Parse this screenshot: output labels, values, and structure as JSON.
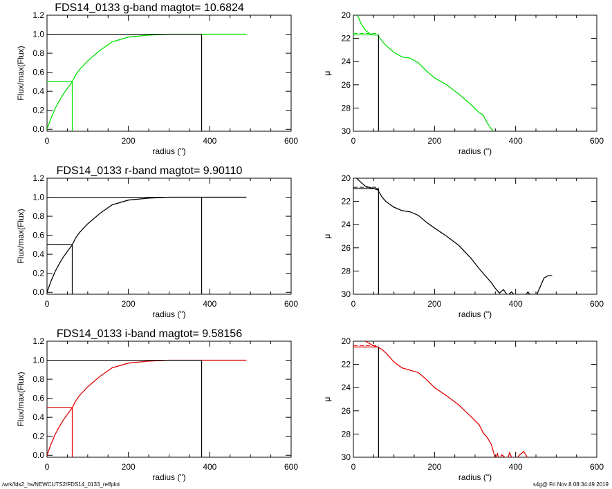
{
  "colors": {
    "g": "#00e000",
    "r": "#000000",
    "i": "#e00000",
    "frame": "#000000"
  },
  "footer": {
    "left": "/wrk/fds2_hs/NEWCUTS2/FDS14_0133_reffplot",
    "right": "s4g@  Fri Nov  8 08:34:49 2019"
  },
  "panels": [
    {
      "band": "g",
      "title": "FDS14_0133 g-band  magtot=      10.6824"
    },
    {
      "band": "r",
      "title": "FDS14_0133 r-band  magtot=      9.90110"
    },
    {
      "band": "i",
      "title": "FDS14_0133 i-band  magtot=      9.58156"
    }
  ],
  "chart_data": [
    {
      "type": "line",
      "band": "g",
      "title": "FDS14_0133 g-band  magtot=      10.6824",
      "xlabel": "radius (\")",
      "ylabel": "Flux/max(Flux)",
      "xlim": [
        0,
        600
      ],
      "ylim": [
        -0.02,
        1.2
      ],
      "xticks": [
        "0",
        "200",
        "400",
        "600"
      ],
      "yticks": [
        "0.0",
        "0.2",
        "0.4",
        "0.6",
        "0.8",
        "1.0",
        "1.2"
      ],
      "series": [
        {
          "x": [
            0,
            5,
            10,
            20,
            30,
            40,
            50,
            62,
            70,
            80,
            100,
            130,
            160,
            200,
            250,
            300,
            350,
            380,
            420,
            490
          ],
          "y": [
            0,
            0.06,
            0.12,
            0.22,
            0.3,
            0.37,
            0.43,
            0.5,
            0.57,
            0.63,
            0.72,
            0.83,
            0.92,
            0.97,
            0.99,
            1.0,
            1.0,
            1.0,
            1.0,
            1.0
          ]
        }
      ],
      "r_half": 62,
      "half_level": 0.5,
      "r_max": 380,
      "max_level": 1.0
    },
    {
      "type": "line",
      "band": "g",
      "xlabel": "radius (\")",
      "ylabel": "μ",
      "xlim": [
        0,
        600
      ],
      "ylim": [
        30,
        20
      ],
      "y_inverted": true,
      "xticks": [
        "0",
        "200",
        "400",
        "600"
      ],
      "yticks": [
        "20",
        "22",
        "24",
        "26",
        "28",
        "30"
      ],
      "series": [
        {
          "x": [
            10,
            20,
            30,
            40,
            50,
            60,
            70,
            80,
            100,
            120,
            140,
            160,
            180,
            200,
            230,
            260,
            290,
            310,
            320,
            330,
            340,
            350
          ],
          "y": [
            20.0,
            20.8,
            21.3,
            21.6,
            21.7,
            21.7,
            22.2,
            22.6,
            23.2,
            23.6,
            23.7,
            24.1,
            24.8,
            25.4,
            26.0,
            26.8,
            27.7,
            28.4,
            28.6,
            29.3,
            29.8,
            30.2
          ]
        }
      ],
      "r_half": 62,
      "mu_half": 21.7
    },
    {
      "type": "line",
      "band": "r",
      "title": "FDS14_0133 r-band  magtot=      9.90110",
      "xlabel": "radius (\")",
      "ylabel": "Flux/max(Flux)",
      "xlim": [
        0,
        600
      ],
      "ylim": [
        -0.02,
        1.2
      ],
      "xticks": [
        "0",
        "200",
        "400",
        "600"
      ],
      "yticks": [
        "0.0",
        "0.2",
        "0.4",
        "0.6",
        "0.8",
        "1.0",
        "1.2"
      ],
      "series": [
        {
          "x": [
            0,
            5,
            10,
            20,
            30,
            40,
            50,
            62,
            70,
            80,
            100,
            130,
            160,
            200,
            250,
            300,
            350,
            380,
            420,
            490
          ],
          "y": [
            0,
            0.06,
            0.12,
            0.22,
            0.3,
            0.37,
            0.43,
            0.5,
            0.57,
            0.63,
            0.72,
            0.83,
            0.92,
            0.97,
            0.99,
            1.0,
            1.0,
            1.0,
            1.0,
            1.0
          ]
        }
      ],
      "r_half": 62,
      "half_level": 0.5,
      "r_max": 380,
      "max_level": 1.0
    },
    {
      "type": "line",
      "band": "r",
      "xlabel": "radius (\")",
      "ylabel": "μ",
      "xlim": [
        0,
        600
      ],
      "ylim": [
        30,
        20
      ],
      "y_inverted": true,
      "xticks": [
        "0",
        "200",
        "400",
        "600"
      ],
      "yticks": [
        "20",
        "22",
        "24",
        "26",
        "28",
        "30"
      ],
      "series": [
        {
          "x": [
            5,
            20,
            30,
            40,
            50,
            60,
            70,
            80,
            100,
            120,
            140,
            160,
            180,
            200,
            230,
            260,
            290,
            310,
            330,
            340,
            350,
            360,
            370,
            380,
            390,
            400,
            420,
            430,
            440,
            450,
            460,
            470,
            480,
            490
          ],
          "y": [
            19.9,
            20.4,
            20.7,
            20.8,
            20.9,
            21.0,
            21.6,
            22.0,
            22.5,
            22.8,
            22.9,
            23.2,
            23.8,
            24.3,
            25.0,
            25.8,
            26.9,
            27.8,
            28.6,
            29.0,
            29.5,
            29.9,
            29.6,
            30.1,
            29.8,
            30.2,
            30.3,
            29.8,
            30.2,
            30.2,
            29.4,
            28.6,
            28.4,
            28.4
          ]
        }
      ],
      "r_half": 62,
      "mu_half": 20.9
    },
    {
      "type": "line",
      "band": "i",
      "title": "FDS14_0133 i-band  magtot=      9.58156",
      "xlabel": "radius (\")",
      "ylabel": "Flux/max(Flux)",
      "xlim": [
        0,
        600
      ],
      "ylim": [
        -0.02,
        1.2
      ],
      "xticks": [
        "0",
        "200",
        "400",
        "600"
      ],
      "yticks": [
        "0.0",
        "0.2",
        "0.4",
        "0.6",
        "0.8",
        "1.0",
        "1.2"
      ],
      "series": [
        {
          "x": [
            0,
            5,
            10,
            20,
            30,
            40,
            50,
            62,
            70,
            80,
            100,
            130,
            160,
            200,
            250,
            300,
            350,
            380,
            420,
            490
          ],
          "y": [
            0,
            0.06,
            0.12,
            0.22,
            0.3,
            0.37,
            0.43,
            0.5,
            0.57,
            0.63,
            0.72,
            0.83,
            0.92,
            0.97,
            0.99,
            1.0,
            1.0,
            1.0,
            1.0,
            1.0
          ]
        }
      ],
      "r_half": 62,
      "half_level": 0.5,
      "r_max": 380,
      "max_level": 1.0
    },
    {
      "type": "line",
      "band": "i",
      "xlabel": "radius (\")",
      "ylabel": "μ",
      "xlim": [
        0,
        600
      ],
      "ylim": [
        30,
        20
      ],
      "y_inverted": true,
      "xticks": [
        "0",
        "200",
        "400",
        "600"
      ],
      "yticks": [
        "20",
        "22",
        "24",
        "26",
        "28",
        "30"
      ],
      "series": [
        {
          "x": [
            30,
            40,
            50,
            60,
            70,
            80,
            100,
            120,
            140,
            160,
            180,
            200,
            230,
            260,
            290,
            310,
            320,
            330,
            340,
            350,
            355,
            360,
            365,
            370,
            380,
            385,
            390,
            400,
            410,
            420,
            425,
            430
          ],
          "y": [
            20.0,
            20.2,
            20.4,
            20.5,
            20.7,
            21.0,
            21.8,
            22.3,
            22.5,
            22.7,
            23.3,
            24.0,
            24.7,
            25.5,
            26.5,
            27.2,
            27.9,
            28.3,
            28.9,
            30.1,
            29.7,
            30.3,
            29.8,
            29.9,
            30.2,
            29.6,
            30.0,
            30.2,
            29.8,
            29.5,
            29.8,
            30.1
          ]
        }
      ],
      "r_half": 62,
      "mu_half": 20.5
    }
  ]
}
